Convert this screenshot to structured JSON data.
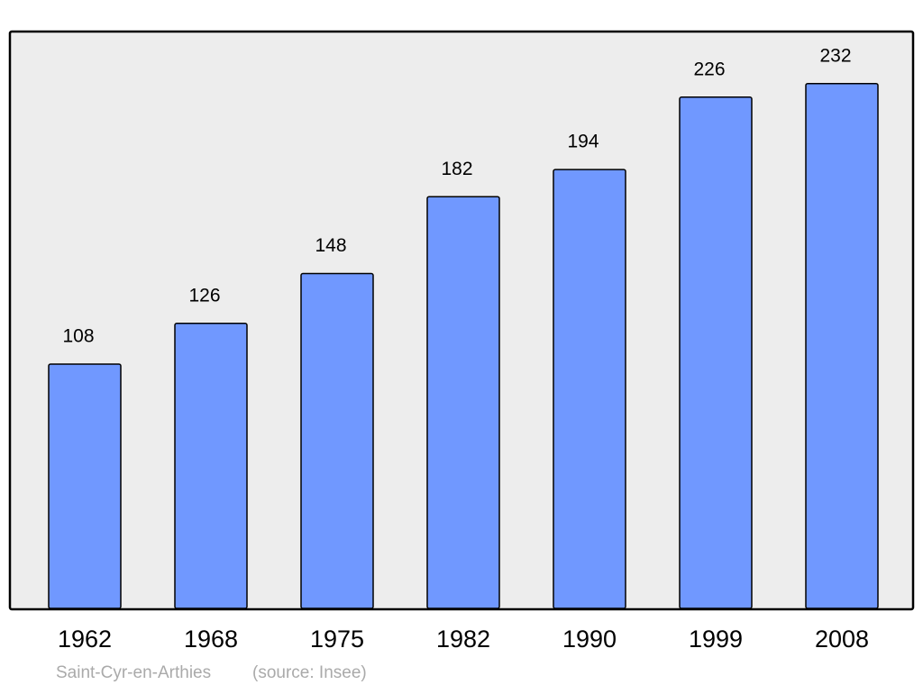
{
  "chart_data": {
    "type": "bar",
    "categories": [
      "1962",
      "1968",
      "1975",
      "1982",
      "1990",
      "1999",
      "2008"
    ],
    "values": [
      108,
      126,
      148,
      182,
      194,
      226,
      232
    ],
    "color": "#7098ff",
    "ylim": [
      0,
      255
    ],
    "caption": "Saint-Cyr-en-Arthies",
    "source": "(source: Insee)"
  }
}
